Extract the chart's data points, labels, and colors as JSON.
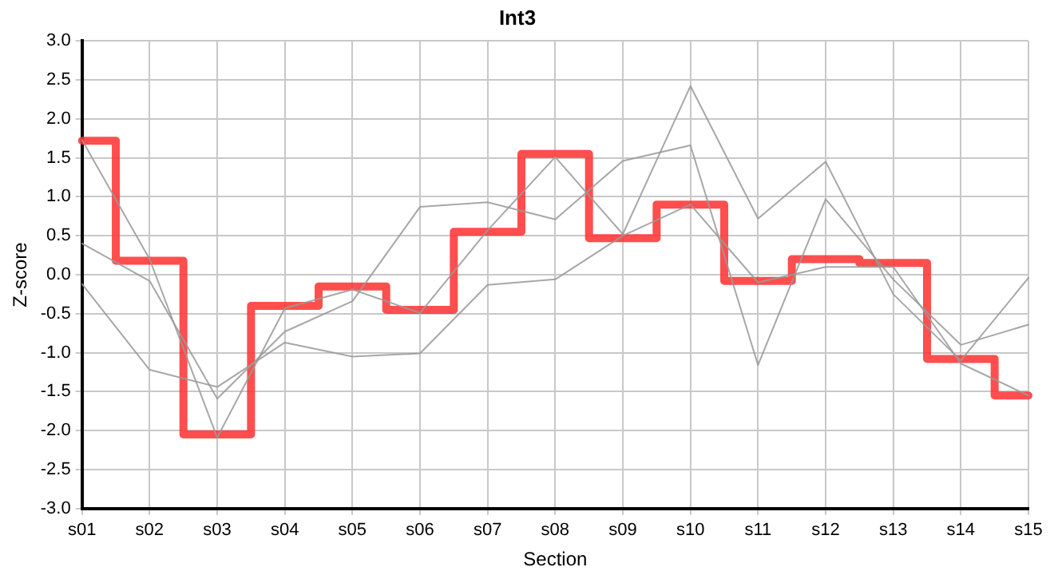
{
  "chart_data": {
    "type": "line",
    "title": "Int3",
    "xlabel": "Section",
    "ylabel": "Z-score",
    "categories": [
      "s01",
      "s02",
      "s03",
      "s04",
      "s05",
      "s06",
      "s07",
      "s08",
      "s09",
      "s10",
      "s11",
      "s12",
      "s13",
      "s14",
      "s15"
    ],
    "series": [
      {
        "type": "line",
        "color": "#999999",
        "values": [
          1.73,
          0.2,
          -2.09,
          -0.43,
          -0.19,
          -0.49,
          0.57,
          1.51,
          0.52,
          2.42,
          0.72,
          1.45,
          -0.25,
          -1.1,
          -0.04
        ]
      },
      {
        "type": "line",
        "color": "#999999",
        "values": [
          0.4,
          -0.08,
          -1.59,
          -0.73,
          -0.34,
          0.87,
          0.93,
          0.71,
          1.46,
          1.66,
          -1.16,
          0.97,
          -0.06,
          -0.9,
          -0.64
        ]
      },
      {
        "type": "line",
        "color": "#999999",
        "values": [
          -0.12,
          -1.22,
          -1.44,
          -0.87,
          -1.05,
          -1.01,
          -0.13,
          -0.06,
          0.5,
          0.9,
          -0.1,
          0.1,
          0.1,
          -1.14,
          -1.55
        ]
      },
      {
        "type": "step",
        "color": "#ff3333",
        "values": [
          1.72,
          0.18,
          -2.05,
          -0.4,
          -0.15,
          -0.45,
          0.55,
          1.55,
          0.47,
          0.9,
          -0.08,
          0.2,
          0.15,
          -1.08,
          -1.55
        ]
      }
    ],
    "ylim": [
      -3,
      3
    ],
    "yticks": [
      {
        "value": -3,
        "label": "-3.0"
      },
      {
        "value": -2.5,
        "label": "-2.5"
      },
      {
        "value": -2,
        "label": "-2.0"
      },
      {
        "value": -1.5,
        "label": "-1.5"
      },
      {
        "value": -1,
        "label": "-1.0"
      },
      {
        "value": -0.5,
        "label": "-0.5"
      },
      {
        "value": 0,
        "label": "0.0"
      },
      {
        "value": 0.5,
        "label": "0.5"
      },
      {
        "value": 1,
        "label": "1.0"
      },
      {
        "value": 1.5,
        "label": "1.5"
      },
      {
        "value": 2,
        "label": "2.0"
      },
      {
        "value": 2.5,
        "label": "2.5"
      },
      {
        "value": 3,
        "label": "3.0"
      }
    ],
    "grid": true,
    "legend": false,
    "marker": "none",
    "line_style": "solid"
  }
}
